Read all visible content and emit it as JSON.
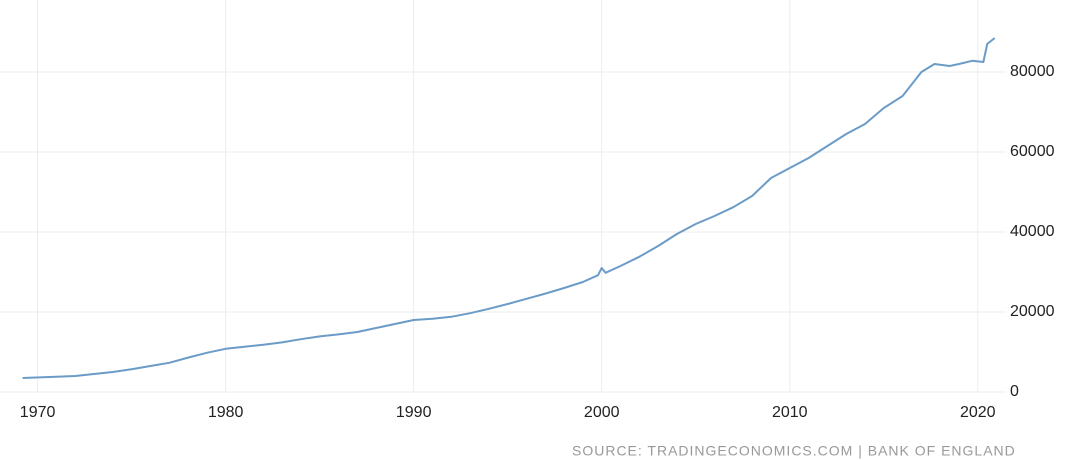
{
  "chart_data": {
    "type": "line",
    "x": [
      1969.2,
      1971,
      1972,
      1973,
      1974,
      1975,
      1976,
      1977,
      1978,
      1979,
      1980,
      1981,
      1982,
      1983,
      1984,
      1985,
      1986,
      1987,
      1988,
      1989,
      1990,
      1991,
      1992,
      1993,
      1994,
      1995,
      1996,
      1997,
      1998,
      1999,
      1999.8,
      2000.0,
      2000.2,
      2001,
      2002,
      2003,
      2004,
      2005,
      2006,
      2007,
      2008,
      2009,
      2010,
      2011,
      2012,
      2013,
      2014,
      2015,
      2016,
      2017,
      2017.7,
      2018.5,
      2019,
      2019.7,
      2020.3,
      2020.5,
      2020.9
    ],
    "series": [
      {
        "color": "#6b9bc7",
        "values": [
          3500,
          3800,
          4000,
          4500,
          5000,
          5700,
          6500,
          7300,
          8600,
          9800,
          10800,
          11300,
          11800,
          12400,
          13200,
          13900,
          14400,
          15000,
          16000,
          17000,
          18000,
          18300,
          18800,
          19700,
          20800,
          22000,
          23300,
          24600,
          26000,
          27500,
          29200,
          31000,
          29800,
          31500,
          33800,
          36500,
          39500,
          42000,
          44000,
          46200,
          49000,
          53500,
          56000,
          58500,
          61500,
          64500,
          67000,
          71000,
          74000,
          80000,
          82000,
          81500,
          82000,
          82800,
          82500,
          87000,
          88500
        ]
      }
    ],
    "xlim": [
      1968,
      2021.5
    ],
    "xticks": [
      1970,
      1980,
      1990,
      2000,
      2010,
      2020
    ],
    "ylim": [
      0,
      98000
    ],
    "yticks": [
      0,
      20000,
      40000,
      60000,
      80000
    ],
    "grid": true,
    "source": "SOURCE: TRADINGECONOMICS.COM | BANK OF ENGLAND"
  }
}
